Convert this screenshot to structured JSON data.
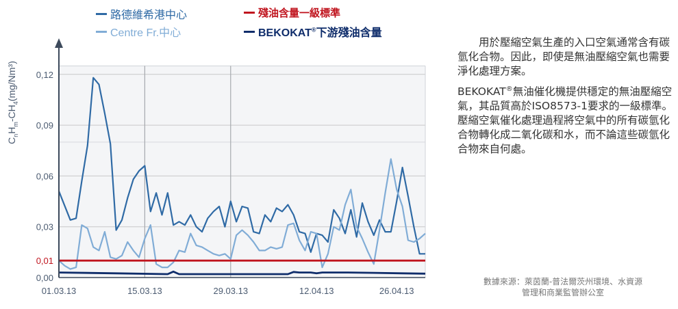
{
  "chart_data": {
    "type": "line",
    "title": "",
    "ylabel": "CnHm-CH4(mg/Nm³)",
    "ylabel_parts": {
      "c": "C",
      "n": "n",
      "h": "H",
      "m": "m",
      "rest": "-CH",
      "four": "4",
      "unit": "(mg/Nm³)"
    },
    "xlabel": "",
    "ylim": [
      0,
      0.13
    ],
    "yticks": [
      {
        "v": 0,
        "label": "0,00"
      },
      {
        "v": 0.01,
        "label": "0,01"
      },
      {
        "v": 0.03,
        "label": "0,03"
      },
      {
        "v": 0.06,
        "label": "0,06"
      },
      {
        "v": 0.09,
        "label": "0,09"
      },
      {
        "v": 0.12,
        "label": "0,12"
      }
    ],
    "xlim": [
      0,
      64
    ],
    "xticks": [
      {
        "v": 0,
        "label": "01.03.13"
      },
      {
        "v": 15,
        "label": "15.03.13"
      },
      {
        "v": 30,
        "label": "29.03.13"
      },
      {
        "v": 45,
        "label": "12.04.13"
      },
      {
        "v": 59,
        "label": "26.04.13"
      }
    ],
    "vertical_gridlines": [
      15,
      30
    ],
    "legend_placement": "top",
    "series": [
      {
        "name": "路德維希港中心",
        "color": "#2f6aa5",
        "x": [
          0,
          2,
          3,
          4,
          5,
          6,
          7,
          8,
          9,
          10,
          11,
          12,
          13,
          14,
          15,
          16,
          17,
          18,
          19,
          20,
          21,
          22,
          23,
          24,
          25,
          26,
          27,
          28,
          29,
          30,
          31,
          32,
          33,
          34,
          35,
          36,
          37,
          38,
          39,
          40,
          41,
          42,
          43,
          44,
          45,
          46,
          47,
          48,
          49,
          50,
          51,
          52,
          53,
          54,
          55,
          56,
          57,
          58,
          59,
          60,
          61,
          62,
          63,
          64
        ],
        "values": [
          0.051,
          0.034,
          0.035,
          0.057,
          0.078,
          0.118,
          0.114,
          0.097,
          0.079,
          0.028,
          0.034,
          0.047,
          0.058,
          0.063,
          0.066,
          0.039,
          0.05,
          0.037,
          0.05,
          0.031,
          0.033,
          0.031,
          0.037,
          0.03,
          0.027,
          0.035,
          0.039,
          0.042,
          0.03,
          0.045,
          0.033,
          0.042,
          0.041,
          0.027,
          0.026,
          0.037,
          0.033,
          0.041,
          0.039,
          0.043,
          0.037,
          0.027,
          0.026,
          0.015,
          0.026,
          0.025,
          0.021,
          0.04,
          0.035,
          0.026,
          0.04,
          0.024,
          0.044,
          0.033,
          0.025,
          0.034,
          0.027,
          0.027,
          0.045,
          0.065,
          0.048,
          0.03,
          0.014,
          0.014
        ]
      },
      {
        "name": "Centre Fr.中心",
        "color": "#80acd6",
        "x": [
          0,
          1,
          2,
          3,
          4,
          5,
          6,
          7,
          8,
          9,
          10,
          11,
          12,
          13,
          14,
          15,
          16,
          17,
          18,
          19,
          20,
          21,
          22,
          23,
          24,
          25,
          26,
          27,
          28,
          29,
          30,
          31,
          32,
          33,
          34,
          35,
          36,
          37,
          38,
          39,
          40,
          41,
          42,
          43,
          44,
          45,
          46,
          47,
          48,
          49,
          50,
          51,
          52,
          53,
          54,
          55,
          56,
          57,
          58,
          59,
          60,
          61,
          62,
          63,
          64
        ],
        "values": [
          0.01,
          0.007,
          0.005,
          0.006,
          0.031,
          0.029,
          0.018,
          0.016,
          0.027,
          0.012,
          0.011,
          0.013,
          0.021,
          0.016,
          0.012,
          0.023,
          0.031,
          0.008,
          0.006,
          0.006,
          0.009,
          0.016,
          0.015,
          0.026,
          0.019,
          0.018,
          0.016,
          0.014,
          0.013,
          0.014,
          0.011,
          0.025,
          0.028,
          0.025,
          0.021,
          0.016,
          0.016,
          0.018,
          0.017,
          0.018,
          0.031,
          0.032,
          0.022,
          0.016,
          0.027,
          0.026,
          0.006,
          0.014,
          0.03,
          0.028,
          0.043,
          0.052,
          0.03,
          0.023,
          0.015,
          0.008,
          0.028,
          0.05,
          0.07,
          0.052,
          0.042,
          0.022,
          0.021,
          0.023,
          0.026
        ]
      },
      {
        "name": "殘油含量一級標準",
        "color": "#c0141e",
        "x": [
          0,
          64
        ],
        "values": [
          0.01,
          0.01
        ]
      },
      {
        "name": "BEKOKAT下游殘油含量",
        "color": "#0f2d6b",
        "x": [
          0,
          10,
          19,
          20,
          21,
          25,
          30,
          40,
          41,
          42,
          44,
          45,
          46,
          50,
          55,
          60,
          64
        ],
        "values": [
          0.003,
          0.0025,
          0.002,
          0.0035,
          0.002,
          0.002,
          0.002,
          0.002,
          0.0033,
          0.003,
          0.003,
          0.0025,
          0.003,
          0.003,
          0.0028,
          0.0025,
          0.0023
        ]
      }
    ]
  },
  "legend": {
    "item1": "路德維希港中心",
    "item2": "殘油含量一級標準",
    "item3": "Centre Fr.中心",
    "item4_main": "BEKOKAT",
    "item4_reg": "®",
    "item4_rest": "下游殘油含量"
  },
  "description": {
    "para1": "用於壓縮空氣生產的入口空氣通常含有碳氫化合物。因此，即使是無油壓縮空氣也需要淨化處理方案。",
    "para2_brand": "BEKOKAT",
    "para2_reg": "®",
    "para2_rest": "無油催化機提供穩定的無油壓縮空氣，其品質高於ISO8573-1要求的一級標準。壓縮空氣催化處理過程將空氣中的所有碳氫化合物轉化成二氧化碳和水，而不論這些碳氫化合物來自何處。"
  },
  "source": {
    "line1": "數據來源：萊茵蘭-普法爾茨州環境、水資源",
    "line2": "管理和商業監管辦公室"
  },
  "colors": {
    "plot_background": "#f4f5f7",
    "axis": "#3d4a5c",
    "grid": "#c8c8c8",
    "label": "#4a5a70"
  }
}
